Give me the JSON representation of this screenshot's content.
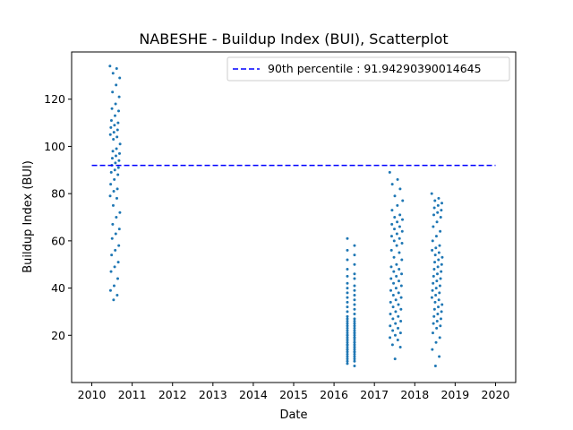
{
  "chart_data": {
    "type": "scatter",
    "title": "NABESHE - Buildup Index (BUI), Scatterplot",
    "xlabel": "Date",
    "ylabel": "Buildup Index (BUI)",
    "xlim": [
      2009.5,
      2020.5
    ],
    "ylim": [
      0,
      140
    ],
    "x_ticks": [
      "2010",
      "2011",
      "2012",
      "2013",
      "2014",
      "2015",
      "2016",
      "2017",
      "2018",
      "2019",
      "2020"
    ],
    "y_ticks": [
      "20",
      "40",
      "60",
      "80",
      "100",
      "120"
    ],
    "grid": false,
    "legend_position": "top-right",
    "reference_line": {
      "label": "90th percentile : 91.94290390014645",
      "value": 91.94290390014645,
      "x_range": [
        2010.0,
        2020.0
      ],
      "color": "#0000ff",
      "style": "dashed"
    },
    "point_color": "#1f77b4",
    "clusters": [
      {
        "x_start": 2010.45,
        "x_end": 2010.7,
        "y": [
          134,
          133,
          131,
          129,
          126,
          123,
          121,
          118,
          116,
          115,
          113,
          111,
          110,
          109,
          108,
          107,
          106,
          105,
          104,
          103,
          101,
          99,
          98,
          97,
          96,
          95,
          94,
          93,
          92,
          91,
          90,
          89,
          88,
          86,
          84,
          82,
          81,
          79,
          78,
          75,
          72,
          70,
          67,
          65,
          63,
          61,
          58,
          56,
          54,
          51,
          49,
          47,
          44,
          41,
          39,
          37,
          35
        ]
      },
      {
        "x_start": 2016.33,
        "x_end": 2016.68,
        "y": [
          61,
          58,
          56,
          54,
          52,
          50,
          48,
          46,
          45,
          44,
          42,
          41,
          40,
          39,
          38,
          37,
          36,
          35,
          34,
          33,
          32,
          31,
          30,
          29,
          28,
          27,
          27,
          26,
          26,
          25,
          25,
          24,
          24,
          23,
          23,
          22,
          22,
          21,
          21,
          21,
          20,
          20,
          20,
          19,
          19,
          19,
          18,
          18,
          18,
          17,
          17,
          17,
          16,
          16,
          16,
          15,
          15,
          15,
          14,
          14,
          14,
          13,
          13,
          13,
          12,
          12,
          11,
          11,
          10,
          10,
          9,
          9,
          8,
          7
        ]
      },
      {
        "x_start": 2017.38,
        "x_end": 2017.7,
        "y": [
          89,
          86,
          84,
          82,
          79,
          77,
          75,
          73,
          71,
          70,
          69,
          68,
          67,
          66,
          65,
          64,
          63,
          62,
          61,
          60,
          59,
          58,
          56,
          55,
          53,
          52,
          50,
          49,
          48,
          47,
          46,
          45,
          44,
          43,
          42,
          41,
          40,
          39,
          38,
          37,
          36,
          35,
          34,
          33,
          32,
          31,
          30,
          29,
          28,
          27,
          26,
          25,
          24,
          23,
          22,
          21,
          20,
          19,
          18,
          16,
          15,
          10
        ]
      },
      {
        "x_start": 2018.42,
        "x_end": 2018.68,
        "y": [
          80,
          78,
          77,
          76,
          75,
          74,
          73,
          72,
          71,
          70,
          68,
          66,
          64,
          62,
          60,
          58,
          57,
          56,
          55,
          54,
          53,
          52,
          51,
          50,
          49,
          48,
          47,
          46,
          45,
          44,
          43,
          42,
          41,
          40,
          39,
          38,
          37,
          36,
          35,
          34,
          33,
          32,
          31,
          30,
          29,
          28,
          27,
          26,
          25,
          24,
          23,
          21,
          19,
          17,
          14,
          11,
          7
        ]
      }
    ]
  }
}
